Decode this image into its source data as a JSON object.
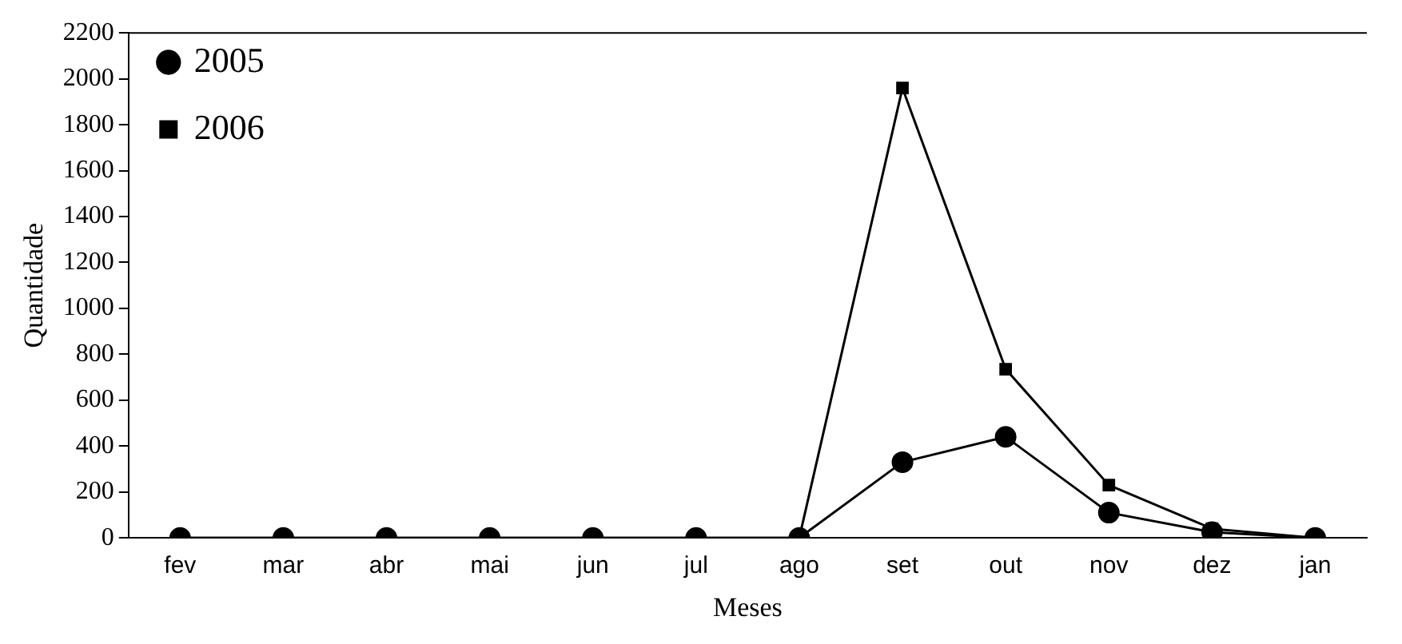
{
  "chart_data": {
    "type": "line",
    "xlabel": "Meses",
    "ylabel": "Quantidade",
    "categories": [
      "fev",
      "mar",
      "abr",
      "mai",
      "jun",
      "jul",
      "ago",
      "set",
      "out",
      "nov",
      "dez",
      "jan"
    ],
    "series": [
      {
        "name": "2005",
        "color": "#000000",
        "marker": "circle",
        "values": [
          0,
          0,
          0,
          0,
          0,
          0,
          0,
          330,
          440,
          110,
          25,
          0
        ]
      },
      {
        "name": "2006",
        "color": "#000000",
        "marker": "square",
        "values": [
          0,
          0,
          0,
          0,
          0,
          0,
          0,
          1960,
          735,
          230,
          40,
          0
        ]
      }
    ],
    "ylim": [
      0,
      2200
    ],
    "yticks": [
      0,
      200,
      400,
      600,
      800,
      1000,
      1200,
      1400,
      1600,
      1800,
      2000,
      2200
    ],
    "grid": false,
    "legend": "top left",
    "line_style": "solid"
  }
}
